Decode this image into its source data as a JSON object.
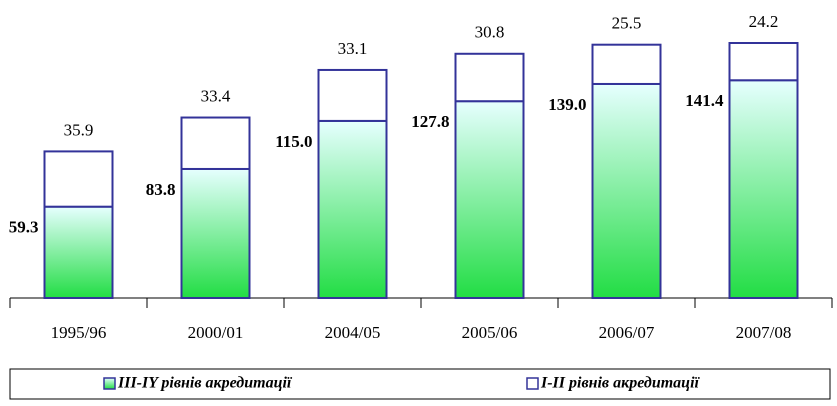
{
  "chart_data": {
    "type": "stacked_bar",
    "categories": [
      "1995/96",
      "2000/01",
      "2004/05",
      "2005/06",
      "2006/07",
      "2007/08"
    ],
    "series": [
      {
        "name": "III-IY рівнів акредитації",
        "color": "#22dd44",
        "values": [
          59.3,
          83.8,
          115.0,
          127.8,
          139.0,
          141.4
        ],
        "value_labels": [
          "59.3",
          "83.8",
          "115.0",
          "127.8",
          "139.0",
          "141.4"
        ]
      },
      {
        "name": "I-II рівнів акредитації",
        "color": "#ffffff",
        "values": [
          35.9,
          33.4,
          33.1,
          30.8,
          25.5,
          24.2
        ],
        "value_labels": [
          "35.9",
          "33.4",
          "33.1",
          "30.8",
          "25.5",
          "24.2"
        ]
      }
    ]
  }
}
